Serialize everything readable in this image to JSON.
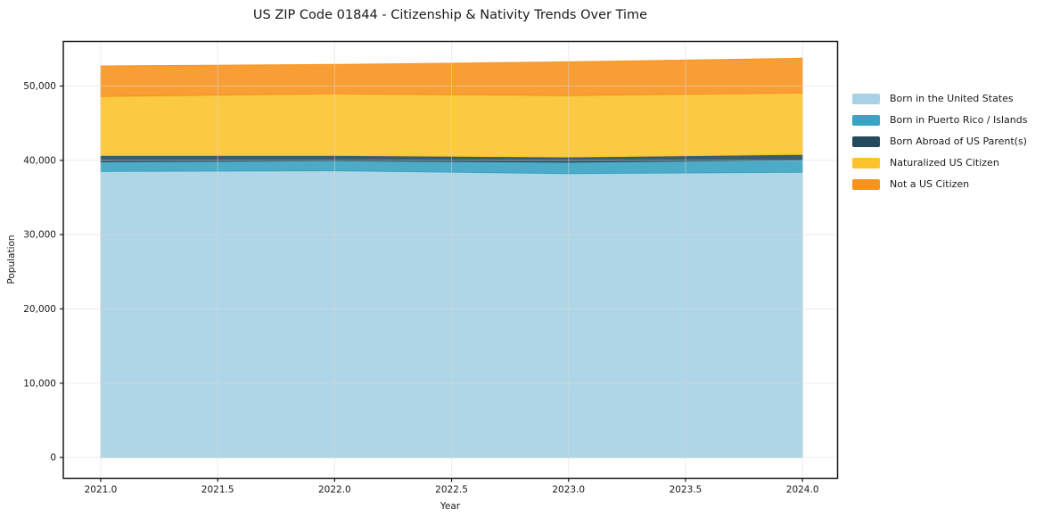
{
  "title": "US ZIP Code 01844 - Citizenship & Nativity Trends Over Time",
  "chart_data": {
    "type": "area",
    "stacked": true,
    "title": "US ZIP Code 01844 - Citizenship & Nativity Trends Over Time",
    "xlabel": "Year",
    "ylabel": "Population",
    "x": [
      2021,
      2022,
      2023,
      2024
    ],
    "series": [
      {
        "name": "Born in the United States",
        "color": "#a6d2e4",
        "values": [
          38500,
          38600,
          38200,
          38400
        ]
      },
      {
        "name": "Born in Puerto Rico / Islands",
        "color": "#38a3c2",
        "values": [
          1300,
          1350,
          1550,
          1650
        ]
      },
      {
        "name": "Born Abroad of US Parent(s)",
        "color": "#254a5c",
        "values": [
          850,
          700,
          700,
          750
        ]
      },
      {
        "name": "Naturalized US Citizen",
        "color": "#fcc32d",
        "values": [
          7950,
          8300,
          8250,
          8250
        ]
      },
      {
        "name": "Not a US Citizen",
        "color": "#f7941f",
        "values": [
          4100,
          3950,
          4550,
          4700
        ]
      }
    ],
    "xlim": [
      2020.84,
      2024.15
    ],
    "ylim": [
      -2800,
      56000
    ],
    "xticks": [
      2021.0,
      2021.5,
      2022.0,
      2022.5,
      2023.0,
      2023.5,
      2024.0
    ],
    "yticks": [
      0,
      10000,
      20000,
      30000,
      40000,
      50000
    ],
    "grid": true,
    "legend_position": "right",
    "colors": {
      "background": "#ffffff",
      "spine": "#1a1a1a",
      "grid": "#d9d9d9",
      "text": "#1a1a1a"
    }
  }
}
